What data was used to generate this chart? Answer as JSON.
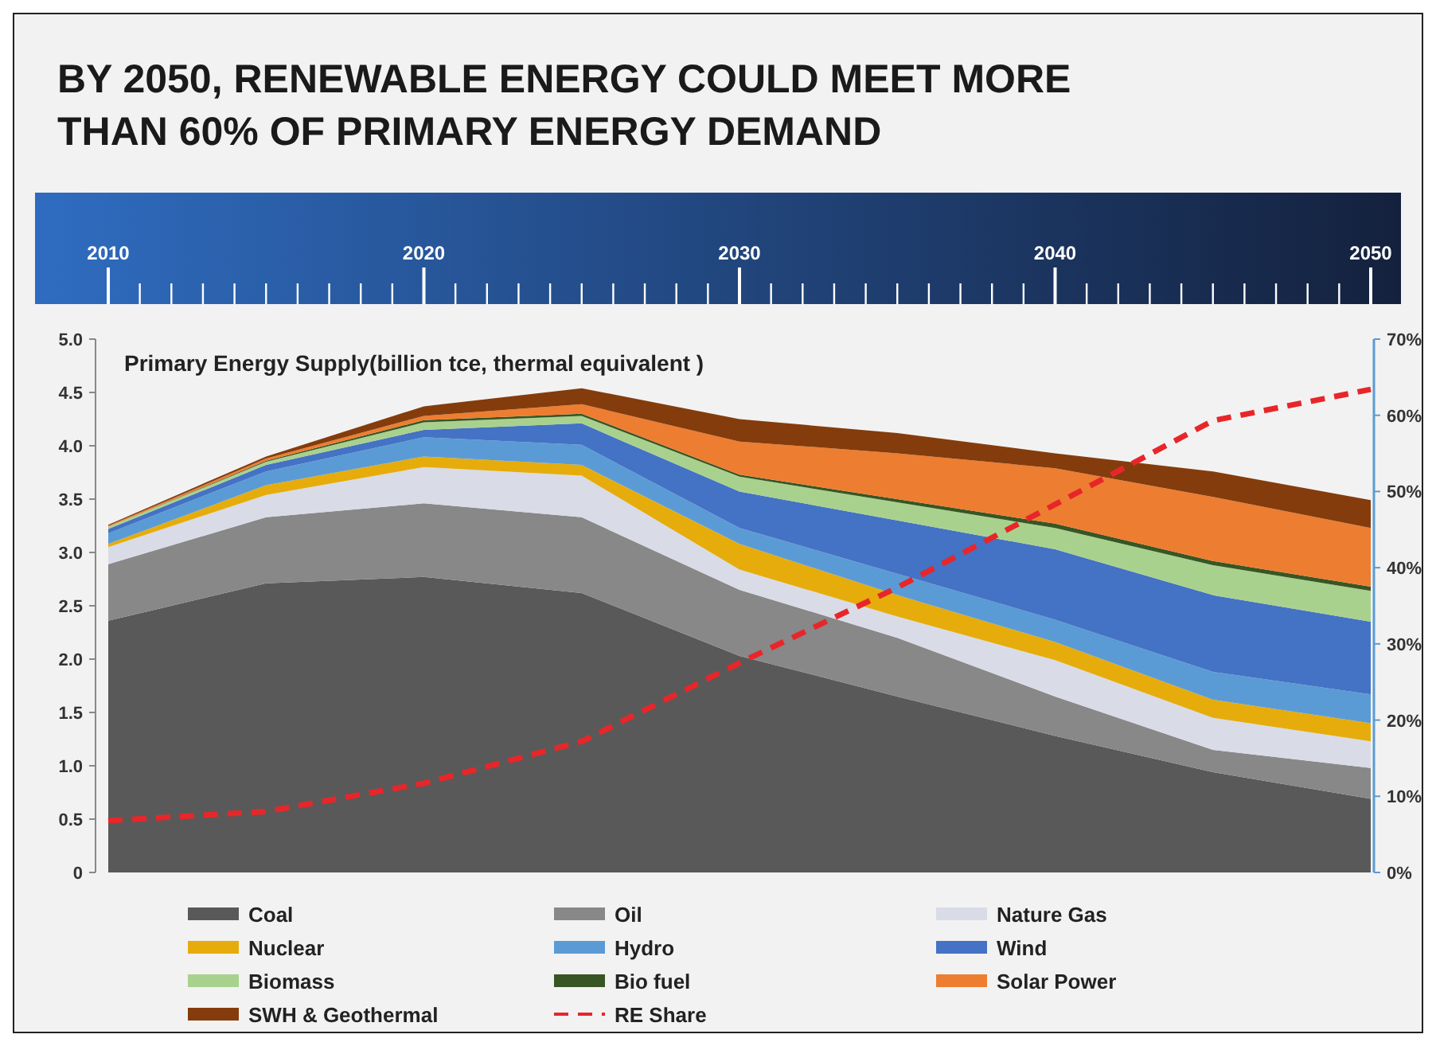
{
  "chart_data": {
    "type": "area",
    "title": "BY 2050, RENEWABLE ENERGY COULD MEET MORE THAN 60% OF PRIMARY ENERGY DEMAND",
    "ylabel": "Primary Energy Supply(billion tce, thermal equivalent  )",
    "stacked": true,
    "x": [
      2010,
      2015,
      2020,
      2025,
      2030,
      2035,
      2040,
      2045,
      2050
    ],
    "xlim": [
      2010,
      2050
    ],
    "xticks": [
      2010,
      2020,
      2030,
      2040,
      2050
    ],
    "ylim": [
      0,
      5
    ],
    "yticks": [
      0,
      0.5,
      {
        "value": 1,
        "label": "1.0"
      },
      1.5,
      {
        "value": 2,
        "label": "2.0"
      },
      2.5,
      {
        "value": 3,
        "label": "3.0"
      },
      3.5,
      {
        "value": 4,
        "label": "4.0"
      },
      4.5,
      {
        "value": 5,
        "label": "5.0"
      }
    ],
    "y2lim": [
      0,
      70
    ],
    "y2ticks": [
      {
        "value": 0,
        "label": "0%"
      },
      {
        "value": 10,
        "label": "10%"
      },
      {
        "value": 20,
        "label": "20%"
      },
      {
        "value": 30,
        "label": "30%"
      },
      {
        "value": 40,
        "label": "40%"
      },
      {
        "value": 50,
        "label": "50%"
      },
      {
        "value": 60,
        "label": "60%"
      },
      {
        "value": 70,
        "label": "70%"
      }
    ],
    "grid": false,
    "legend": "bottom",
    "marker": "none",
    "series": [
      {
        "name": "Coal",
        "color": "#595959",
        "values": [
          2.36,
          2.71,
          2.77,
          2.62,
          2.03,
          1.65,
          1.28,
          0.94,
          0.69
        ]
      },
      {
        "name": "Oil",
        "color": "#888888",
        "values": [
          0.53,
          0.62,
          0.69,
          0.71,
          0.62,
          0.55,
          0.37,
          0.21,
          0.29
        ]
      },
      {
        "name": "Nature Gas",
        "color": "#d9dce6",
        "values": [
          0.16,
          0.21,
          0.34,
          0.39,
          0.19,
          0.2,
          0.34,
          0.3,
          0.25
        ]
      },
      {
        "name": "Nuclear",
        "color": "#e6ac0c",
        "values": [
          0.03,
          0.09,
          0.1,
          0.1,
          0.24,
          0.2,
          0.17,
          0.17,
          0.17
        ]
      },
      {
        "name": "Hydro",
        "color": "#5b9bd5",
        "values": [
          0.1,
          0.13,
          0.18,
          0.19,
          0.15,
          0.2,
          0.21,
          0.26,
          0.27
        ]
      },
      {
        "name": "Wind",
        "color": "#4472c4",
        "values": [
          0.04,
          0.06,
          0.07,
          0.2,
          0.34,
          0.5,
          0.66,
          0.72,
          0.68
        ]
      },
      {
        "name": "Biomass",
        "color": "#a9d18e",
        "values": [
          0.02,
          0.03,
          0.07,
          0.07,
          0.14,
          0.17,
          0.2,
          0.28,
          0.29
        ]
      },
      {
        "name": "Bio fuel",
        "color": "#375623",
        "values": [
          0,
          0.01,
          0.02,
          0.02,
          0.02,
          0.03,
          0.04,
          0.04,
          0.04
        ]
      },
      {
        "name": "Solar Power",
        "color": "#ed7d31",
        "values": [
          0.01,
          0.02,
          0.04,
          0.09,
          0.31,
          0.43,
          0.52,
          0.6,
          0.55
        ]
      },
      {
        "name": "SWH & Geothermal",
        "color": "#843c0c",
        "values": [
          0.01,
          0.02,
          0.09,
          0.15,
          0.21,
          0.19,
          0.14,
          0.24,
          0.26
        ]
      },
      {
        "name": "RE Share",
        "type": "line",
        "axis": "y2",
        "line_style": "dashed",
        "color": "#e8262a",
        "values": [
          6.8,
          8,
          11.7,
          17.2,
          27.5,
          37.4,
          48.3,
          59.3,
          63.4
        ]
      }
    ]
  }
}
